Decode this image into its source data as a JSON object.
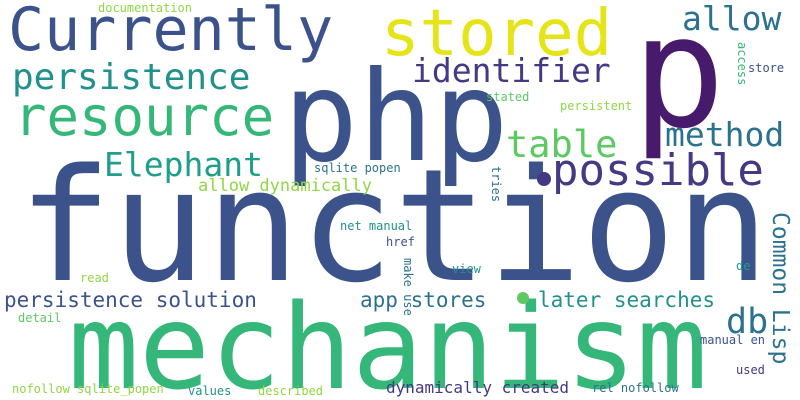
{
  "colors": {
    "background": "#ffffff",
    "navy": "#3b528b",
    "indigo": "#443983",
    "dark_purple": "#481a6c",
    "teal": "#2c728e",
    "teal_green": "#21918c",
    "sea_green": "#1f9e89",
    "green": "#35b779",
    "light_green": "#5ec962",
    "lime": "#90d743",
    "yellow": "#e5e419"
  },
  "words": {
    "function": "function",
    "mechanism": "mechanism",
    "php": "php",
    "p": "p",
    "currently": "Currently",
    "stored": "stored",
    "resource": "resource",
    "persistence": "persistence",
    "identifier": "identifier",
    "allow": "allow",
    "possible": "possible",
    "method": "method",
    "table": "table",
    "elephant": "Elephant",
    "allow_dynamically": "allow dynamically",
    "persistence_solution": "persistence solution",
    "app_stores": "app stores",
    "later_searches": "later searches",
    "db": "db",
    "common_lisp": "Common Lisp",
    "documentation": "documentation",
    "stated": "stated",
    "persistent": "persistent",
    "access": "access",
    "store": "store",
    "sqlite_popen": "sqlite popen",
    "tries": "tries",
    "net_manual": "net manual",
    "href": "href",
    "read": "read",
    "view": "view",
    "de": "de",
    "make_use": "make use",
    "detail": "detail",
    "manual_en": "manual en",
    "used": "used",
    "nofollow_sqlite_popen": "nofollow sqlite_popen",
    "values": "values",
    "described": "described",
    "dynamically_created": "dynamically created",
    "rel_nofollow": "rel nofollow"
  }
}
